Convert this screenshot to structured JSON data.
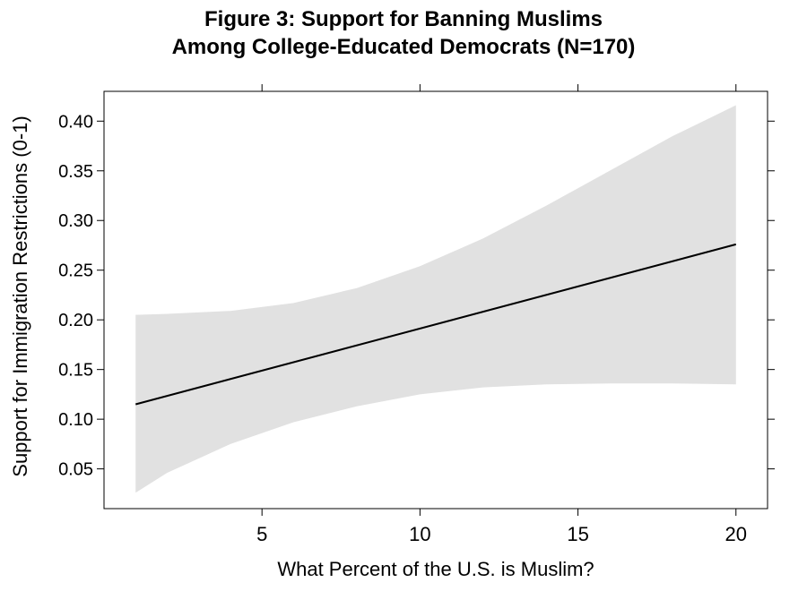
{
  "chart_data": {
    "type": "line",
    "title": "Figure 3: Support for Banning Muslims",
    "subtitle": "Among College-Educated Democrats (N=170)",
    "xlabel": "What Percent of the U.S. is Muslim?",
    "ylabel": "Support for Immigration Restrictions (0-1)",
    "xlim": [
      0,
      21
    ],
    "ylim": [
      0.01,
      0.43
    ],
    "x_ticks": [
      5,
      10,
      15,
      20
    ],
    "x_tick_labels": [
      "5",
      "10",
      "15",
      "20"
    ],
    "y_ticks": [
      0.05,
      0.1,
      0.15,
      0.2,
      0.25,
      0.3,
      0.35,
      0.4
    ],
    "y_tick_labels": [
      "0.05",
      "0.10",
      "0.15",
      "0.20",
      "0.25",
      "0.30",
      "0.35",
      "0.40"
    ],
    "grid": false,
    "line_color": "#000000",
    "band_color": "#e1e1e1",
    "series": [
      {
        "x": [
          1,
          20
        ],
        "y": [
          0.115,
          0.276
        ]
      }
    ],
    "confidence_band": {
      "x": [
        1,
        2,
        4,
        6,
        8,
        10,
        12,
        14,
        16,
        18,
        20
      ],
      "upper": [
        0.205,
        0.206,
        0.209,
        0.217,
        0.232,
        0.254,
        0.282,
        0.315,
        0.35,
        0.385,
        0.416
      ],
      "lower": [
        0.026,
        0.046,
        0.075,
        0.097,
        0.113,
        0.125,
        0.132,
        0.135,
        0.136,
        0.136,
        0.135
      ]
    }
  }
}
